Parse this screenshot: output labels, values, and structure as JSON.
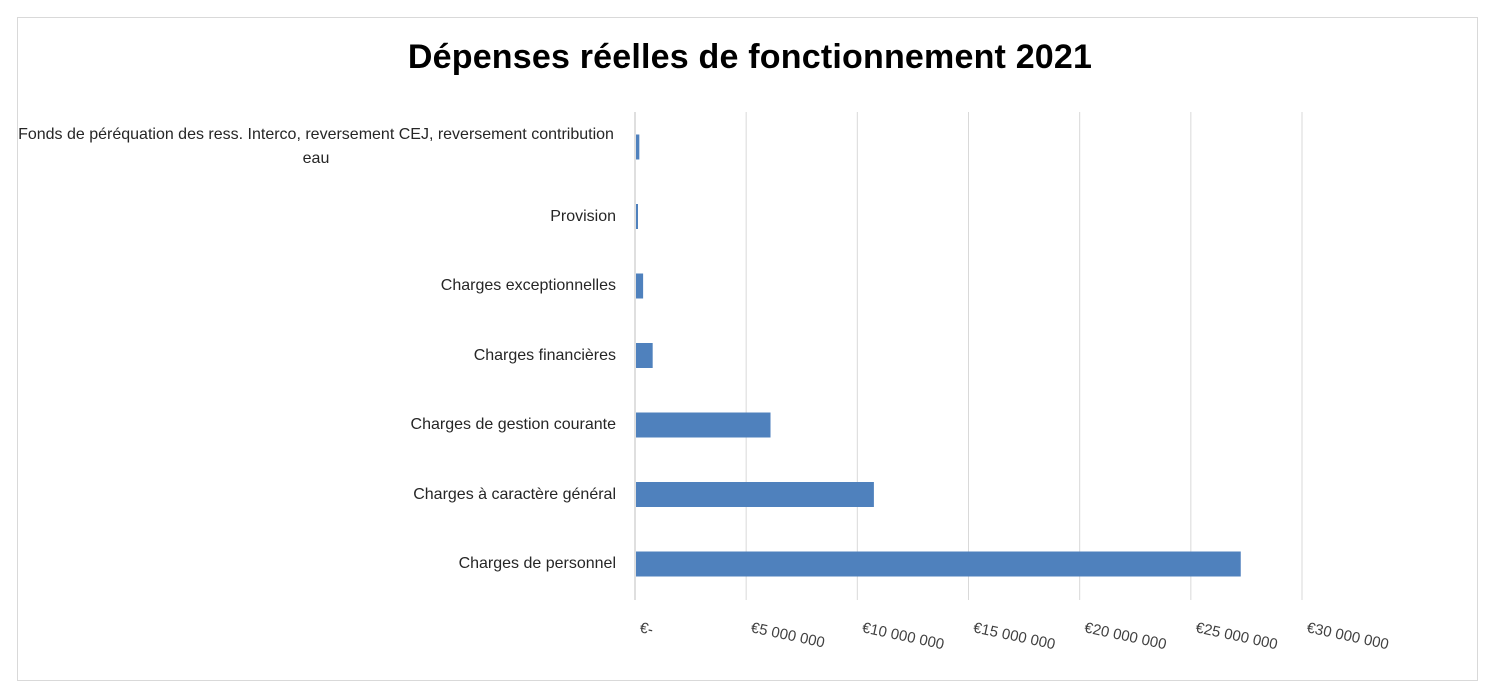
{
  "chart_data": {
    "type": "bar",
    "orientation": "horizontal",
    "title": "Dépenses réelles de fonctionnement 2021",
    "categories": [
      "Fonds de péréquation des ress. Interco, reversement CEJ, reversement contribution eau",
      "Provision",
      "Charges exceptionnelles",
      "Charges financières",
      "Charges de gestion courante",
      "Charges à caractère général",
      "Charges de personnel"
    ],
    "values": [
      150000,
      80000,
      320000,
      750000,
      6050000,
      10700000,
      27200000
    ],
    "xlim": [
      0,
      30000000
    ],
    "xticks": [
      0,
      5000000,
      10000000,
      15000000,
      20000000,
      25000000,
      30000000
    ],
    "xtick_labels": [
      "€-",
      "€5 000 000",
      "€10 000 000",
      "€15 000 000",
      "€20 000 000",
      "€25 000 000",
      "€30 000 000"
    ],
    "grid": true,
    "bar_color": "#4f81bd"
  }
}
